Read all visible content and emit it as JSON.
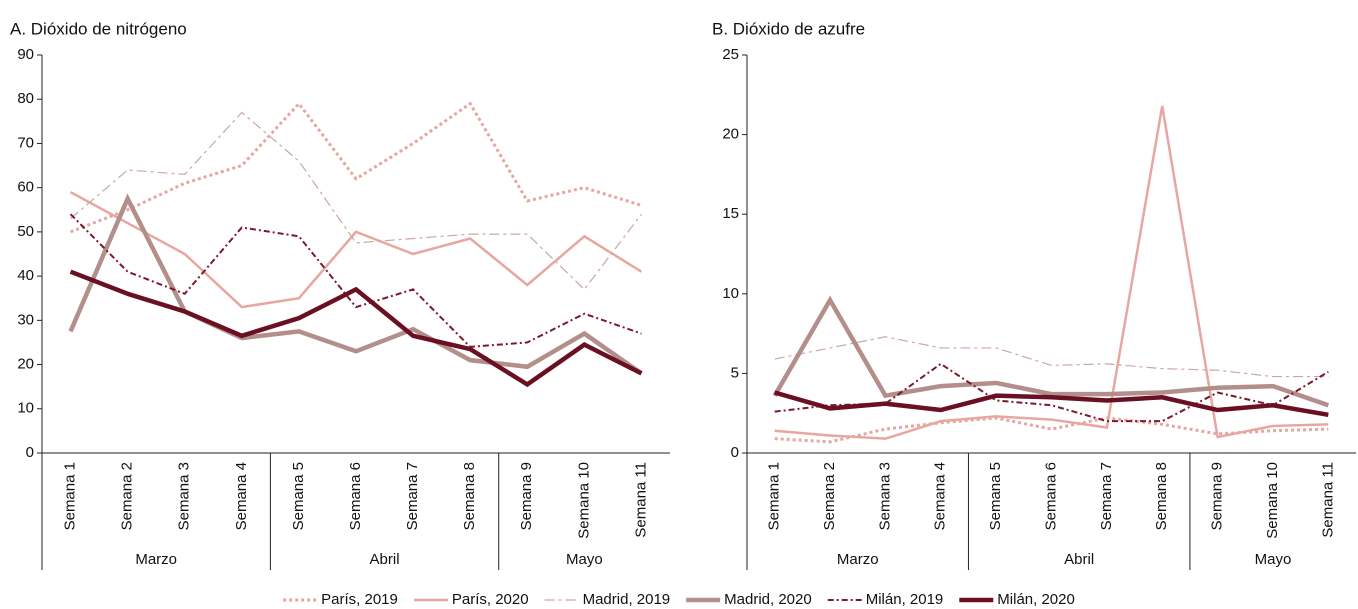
{
  "chart_data": [
    {
      "type": "line",
      "title": "A. Dióxido de nitrógeno",
      "categories": [
        "Semana 1",
        "Semana 2",
        "Semana 3",
        "Semana 4",
        "Semana 5",
        "Semana 6",
        "Semana 7",
        "Semana 8",
        "Semana 9",
        "Semana 10",
        "Semana 11"
      ],
      "groups": [
        {
          "name": "Marzo",
          "size": 4
        },
        {
          "name": "Abril",
          "size": 4
        },
        {
          "name": "Mayo",
          "size": 3
        }
      ],
      "ylim": [
        0,
        90
      ],
      "yticks": [
        0,
        10,
        20,
        30,
        40,
        50,
        60,
        70,
        80,
        90
      ],
      "series": [
        {
          "name": "París, 2019",
          "color": "#e8a6a0",
          "style": "dotted",
          "values": [
            50,
            55,
            61,
            65,
            79,
            62,
            70,
            79,
            57,
            60,
            56
          ]
        },
        {
          "name": "París, 2020",
          "color": "#e8a6a0",
          "style": "solid",
          "values": [
            59,
            52,
            45,
            33,
            35,
            50,
            45,
            48.5,
            38,
            49,
            41
          ]
        },
        {
          "name": "Madrid, 2019",
          "color": "#c9a8a4",
          "style": "dashed",
          "values": [
            53,
            64,
            63,
            77,
            66,
            47.5,
            48.5,
            49.5,
            49.5,
            37,
            54
          ]
        },
        {
          "name": "Madrid, 2020",
          "color": "#b38e8a",
          "style": "thick",
          "values": [
            27.5,
            57.5,
            32,
            26,
            27.5,
            23,
            28,
            21,
            19.5,
            27,
            18
          ]
        },
        {
          "name": "Milán, 2019",
          "color": "#7a1a2c",
          "style": "dashdot",
          "values": [
            54,
            41,
            36,
            51,
            49,
            33,
            37,
            24,
            25,
            31.5,
            27
          ]
        },
        {
          "name": "Milán, 2020",
          "color": "#6b0f22",
          "style": "thick",
          "values": [
            41,
            36,
            32,
            26.5,
            30.5,
            37,
            26.5,
            23.5,
            15.5,
            24.5,
            18
          ]
        }
      ]
    },
    {
      "type": "line",
      "title": "B. Dióxido de azufre",
      "categories": [
        "Semana 1",
        "Semana 2",
        "Semana 3",
        "Semana 4",
        "Semana 5",
        "Semana 6",
        "Semana 7",
        "Semana 8",
        "Semana 9",
        "Semana 10",
        "Semana 11"
      ],
      "groups": [
        {
          "name": "Marzo",
          "size": 4
        },
        {
          "name": "Abril",
          "size": 4
        },
        {
          "name": "Mayo",
          "size": 3
        }
      ],
      "ylim": [
        0,
        25
      ],
      "yticks": [
        0,
        5,
        10,
        15,
        20,
        25
      ],
      "series": [
        {
          "values": [
            0.9,
            0.7,
            1.5,
            1.9,
            2.2,
            1.5,
            2.2,
            1.8,
            1.2,
            1.4,
            1.5
          ]
        },
        {
          "values": [
            1.4,
            1.1,
            0.9,
            2.0,
            2.3,
            2.1,
            1.6,
            21.8,
            1.0,
            1.7,
            1.8
          ]
        },
        {
          "values": [
            5.9,
            6.6,
            7.3,
            6.6,
            6.6,
            5.5,
            5.6,
            5.3,
            5.2,
            4.8,
            4.8
          ]
        },
        {
          "values": [
            3.6,
            9.6,
            3.6,
            4.2,
            4.4,
            3.7,
            3.7,
            3.8,
            4.1,
            4.2,
            3.0
          ]
        },
        {
          "values": [
            2.6,
            3.0,
            3.1,
            5.6,
            3.3,
            3.0,
            2.0,
            2.0,
            3.8,
            3.0,
            5.1
          ]
        },
        {
          "values": [
            3.8,
            2.8,
            3.1,
            2.7,
            3.6,
            3.5,
            3.3,
            3.5,
            2.7,
            3.0,
            2.4
          ]
        }
      ]
    }
  ]
}
